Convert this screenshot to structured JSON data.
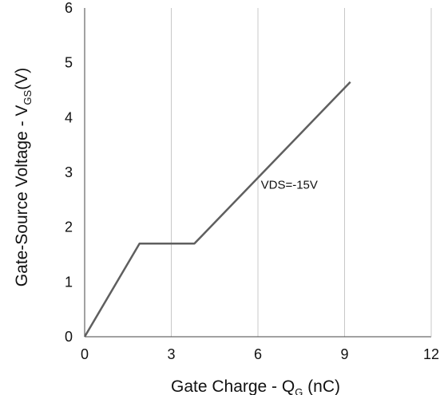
{
  "chart_data": {
    "type": "line",
    "xlabel": "Gate Charge - QG (nC)",
    "xlabel_parts": {
      "main": "Gate Charge - Q",
      "sub": "G",
      "tail": " (nC)"
    },
    "ylabel": "Gate-Source Voltage - VGS(V)",
    "ylabel_parts": {
      "main": "Gate-Source Voltage - V",
      "sub": "GS",
      "tail": "(V)"
    },
    "xlim": [
      0,
      12
    ],
    "ylim": [
      0,
      6
    ],
    "xticks": [
      "0",
      "3",
      "6",
      "9",
      "12"
    ],
    "yticks": [
      "0",
      "1",
      "2",
      "3",
      "4",
      "5",
      "6"
    ],
    "grid": "vertical",
    "series": [
      {
        "points": [
          [
            0,
            0
          ],
          [
            1.9,
            1.7
          ],
          [
            3.8,
            1.7
          ],
          [
            9.2,
            4.65
          ]
        ]
      }
    ],
    "annotations": [
      {
        "text": "VDS=-15V",
        "x": 6.1,
        "y": 2.7
      }
    ],
    "colors": {
      "line": "#5f5f5f",
      "grid": "#c8c8c8",
      "axis": "#444444"
    }
  }
}
